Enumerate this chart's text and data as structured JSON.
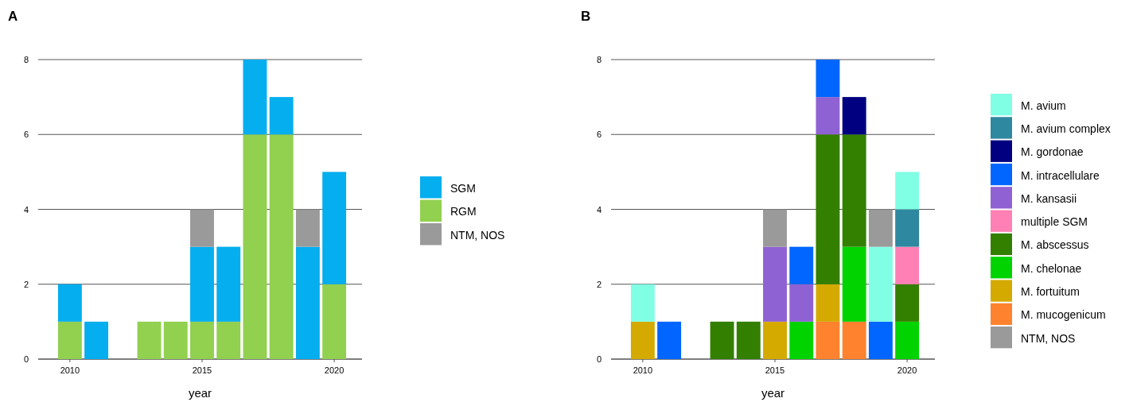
{
  "chart_data": [
    {
      "type": "bar",
      "title": "A",
      "xlabel": "year",
      "stacked": true,
      "x": [
        2010,
        2011,
        2012,
        2013,
        2014,
        2015,
        2016,
        2017,
        2018,
        2019,
        2020
      ],
      "xlim": [
        2008.8,
        2021.05
      ],
      "xticks": [
        2010,
        2015,
        2020
      ],
      "ylim": [
        0,
        8
      ],
      "yticks": [
        0,
        2,
        4,
        6,
        8
      ],
      "grid": "y",
      "legend": "right",
      "series": [
        {
          "name": "RGM",
          "color": "#92d050",
          "values": [
            1,
            0,
            0,
            1,
            1,
            1,
            1,
            6,
            6,
            0,
            2
          ]
        },
        {
          "name": "SGM",
          "color": "#05aeef",
          "values": [
            1,
            1,
            0,
            0,
            0,
            2,
            2,
            2,
            1,
            3,
            3
          ]
        },
        {
          "name": "NTM, NOS",
          "color": "#9a9a9a",
          "values": [
            0,
            0,
            0,
            0,
            0,
            1,
            0,
            0,
            0,
            1,
            0
          ]
        }
      ]
    },
    {
      "type": "bar",
      "title": "B",
      "xlabel": "year",
      "stacked": true,
      "x": [
        2010,
        2011,
        2012,
        2013,
        2014,
        2015,
        2016,
        2017,
        2018,
        2019,
        2020
      ],
      "xlim": [
        2008.8,
        2021.05
      ],
      "xticks": [
        2010,
        2015,
        2020
      ],
      "ylim": [
        0,
        8
      ],
      "yticks": [
        0,
        2,
        4,
        6,
        8
      ],
      "grid": "y",
      "legend": "right",
      "series": [
        {
          "name": "M. mucogenicum",
          "color": "#ff822e",
          "values": [
            0,
            0,
            0,
            0,
            0,
            0,
            0,
            1,
            1,
            0,
            0
          ]
        },
        {
          "name": "M. fortuitum",
          "color": "#d4aa00",
          "values": [
            1,
            0,
            0,
            0,
            0,
            1,
            0,
            1,
            0,
            0,
            0
          ]
        },
        {
          "name": "M. chelonae",
          "color": "#00d300",
          "values": [
            0,
            0,
            0,
            0,
            0,
            0,
            1,
            0,
            2,
            0,
            1
          ]
        },
        {
          "name": "M. abscessus",
          "color": "#337f00",
          "values": [
            0,
            0,
            0,
            1,
            1,
            0,
            0,
            4,
            3,
            0,
            1
          ]
        },
        {
          "name": "multiple SGM",
          "color": "#ff80b4",
          "values": [
            0,
            0,
            0,
            0,
            0,
            0,
            0,
            0,
            0,
            0,
            1
          ]
        },
        {
          "name": "M. kansasii",
          "color": "#8f62d4",
          "values": [
            0,
            0,
            0,
            0,
            0,
            2,
            1,
            1,
            0,
            0,
            0
          ]
        },
        {
          "name": "M. intracellulare",
          "color": "#0066ff",
          "values": [
            0,
            1,
            0,
            0,
            0,
            0,
            1,
            1,
            0,
            1,
            0
          ]
        },
        {
          "name": "M. gordonae",
          "color": "#000080",
          "values": [
            0,
            0,
            0,
            0,
            0,
            0,
            0,
            0,
            1,
            0,
            0
          ]
        },
        {
          "name": "M. avium complex",
          "color": "#2e88a0",
          "values": [
            0,
            0,
            0,
            0,
            0,
            0,
            0,
            0,
            0,
            0,
            1
          ]
        },
        {
          "name": "M. avium",
          "color": "#80ffe4",
          "values": [
            1,
            0,
            0,
            0,
            0,
            0,
            0,
            0,
            0,
            2,
            1
          ]
        },
        {
          "name": "NTM, NOS",
          "color": "#9a9a9a",
          "values": [
            0,
            0,
            0,
            0,
            0,
            1,
            0,
            0,
            0,
            1,
            0
          ]
        }
      ]
    }
  ]
}
